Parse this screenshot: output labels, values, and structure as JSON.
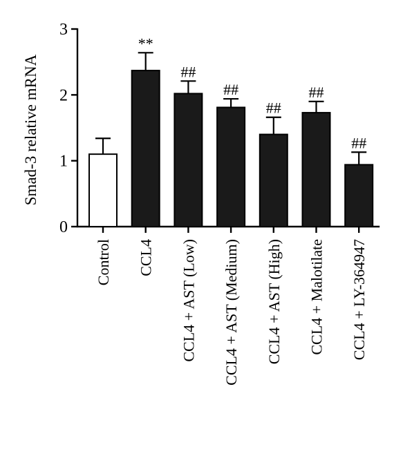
{
  "chart_data": {
    "type": "bar",
    "title": "",
    "xlabel": "",
    "ylabel": "Smad-3 relative mRNA",
    "ylim": [
      0,
      3
    ],
    "yticks": [
      "0",
      "1",
      "2",
      "3"
    ],
    "grid": false,
    "categories": [
      "Control",
      "CCL4",
      "CCL4 + AST (Low)",
      "CCL4 + AST (Medium)",
      "CCL4 + AST (High)",
      "CCL4 + Malotilate",
      "CCL4 + LY-364947"
    ],
    "values": [
      1.1,
      2.37,
      2.02,
      1.81,
      1.4,
      1.73,
      0.94
    ],
    "errors": [
      0.24,
      0.27,
      0.19,
      0.13,
      0.26,
      0.17,
      0.19
    ],
    "annotations": [
      "",
      "**",
      "##",
      "##",
      "##",
      "##",
      "##"
    ],
    "bar_colors": [
      "#ffffff",
      "#1a1a1a",
      "#1a1a1a",
      "#1a1a1a",
      "#1a1a1a",
      "#1a1a1a",
      "#1a1a1a"
    ]
  }
}
